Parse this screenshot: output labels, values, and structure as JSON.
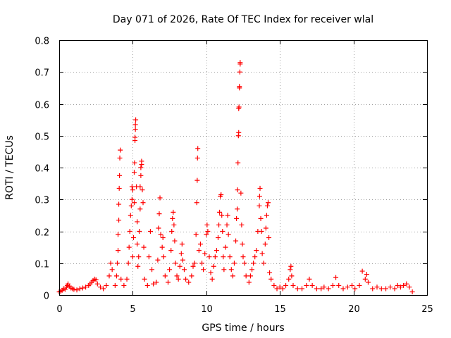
{
  "chart_data": {
    "type": "scatter",
    "title": "Day 071 of 2026, Rate Of TEC Index for receiver wlal",
    "xlabel": "GPS time / hours",
    "ylabel": "ROTI / TECUs",
    "xlim": [
      0,
      25
    ],
    "ylim": [
      0,
      0.8
    ],
    "xticks": [
      0,
      5,
      10,
      15,
      20,
      25
    ],
    "xtick_labels": [
      "0",
      "5",
      "10",
      "15",
      "20",
      "25"
    ],
    "yticks": [
      0,
      0.1,
      0.2,
      0.3,
      0.4,
      0.5,
      0.6,
      0.7,
      0.8
    ],
    "ytick_labels": [
      "0",
      "0.1",
      "0.2",
      "0.3",
      "0.4",
      "0.5",
      "0.6",
      "0.7",
      "0.8"
    ],
    "grid": true,
    "marker": "+",
    "series": [
      {
        "name": "ROTI",
        "color": "#ff0000",
        "points": [
          [
            0.0,
            0.01
          ],
          [
            0.1,
            0.012
          ],
          [
            0.2,
            0.015
          ],
          [
            0.3,
            0.02
          ],
          [
            0.4,
            0.018
          ],
          [
            0.5,
            0.025
          ],
          [
            0.55,
            0.03
          ],
          [
            0.6,
            0.035
          ],
          [
            0.7,
            0.028
          ],
          [
            0.8,
            0.022
          ],
          [
            0.9,
            0.02
          ],
          [
            1.0,
            0.018
          ],
          [
            1.2,
            0.016
          ],
          [
            1.4,
            0.02
          ],
          [
            1.6,
            0.022
          ],
          [
            1.8,
            0.025
          ],
          [
            2.0,
            0.03
          ],
          [
            2.1,
            0.035
          ],
          [
            2.2,
            0.04
          ],
          [
            2.3,
            0.045
          ],
          [
            2.4,
            0.05
          ],
          [
            2.5,
            0.048
          ],
          [
            2.6,
            0.035
          ],
          [
            2.8,
            0.025
          ],
          [
            3.0,
            0.02
          ],
          [
            3.2,
            0.03
          ],
          [
            3.4,
            0.06
          ],
          [
            3.5,
            0.1
          ],
          [
            3.6,
            0.08
          ],
          [
            3.8,
            0.03
          ],
          [
            3.9,
            0.06
          ],
          [
            3.95,
            0.1
          ],
          [
            4.0,
            0.14
          ],
          [
            4.0,
            0.19
          ],
          [
            4.05,
            0.235
          ],
          [
            4.05,
            0.285
          ],
          [
            4.08,
            0.335
          ],
          [
            4.1,
            0.375
          ],
          [
            4.12,
            0.43
          ],
          [
            4.15,
            0.455
          ],
          [
            4.2,
            0.05
          ],
          [
            4.4,
            0.03
          ],
          [
            4.6,
            0.05
          ],
          [
            4.7,
            0.1
          ],
          [
            4.75,
            0.15
          ],
          [
            4.8,
            0.2
          ],
          [
            4.85,
            0.25
          ],
          [
            4.9,
            0.28
          ],
          [
            4.95,
            0.3
          ],
          [
            4.95,
            0.34
          ],
          [
            5.0,
            0.33
          ],
          [
            5.0,
            0.12
          ],
          [
            5.05,
            0.18
          ],
          [
            5.1,
            0.29
          ],
          [
            5.1,
            0.385
          ],
          [
            5.12,
            0.415
          ],
          [
            5.15,
            0.485
          ],
          [
            5.15,
            0.495
          ],
          [
            5.18,
            0.52
          ],
          [
            5.18,
            0.535
          ],
          [
            5.2,
            0.55
          ],
          [
            5.25,
            0.34
          ],
          [
            5.3,
            0.23
          ],
          [
            5.3,
            0.16
          ],
          [
            5.35,
            0.09
          ],
          [
            5.4,
            0.12
          ],
          [
            5.45,
            0.2
          ],
          [
            5.5,
            0.27
          ],
          [
            5.5,
            0.34
          ],
          [
            5.55,
            0.375
          ],
          [
            5.55,
            0.4
          ],
          [
            5.6,
            0.42
          ],
          [
            5.6,
            0.41
          ],
          [
            5.65,
            0.33
          ],
          [
            5.7,
            0.29
          ],
          [
            5.75,
            0.15
          ],
          [
            5.8,
            0.05
          ],
          [
            6.0,
            0.03
          ],
          [
            6.1,
            0.12
          ],
          [
            6.2,
            0.2
          ],
          [
            6.3,
            0.08
          ],
          [
            6.4,
            0.035
          ],
          [
            6.6,
            0.04
          ],
          [
            6.7,
            0.11
          ],
          [
            6.75,
            0.21
          ],
          [
            6.8,
            0.255
          ],
          [
            6.85,
            0.305
          ],
          [
            6.9,
            0.19
          ],
          [
            7.0,
            0.15
          ],
          [
            7.05,
            0.18
          ],
          [
            7.1,
            0.12
          ],
          [
            7.2,
            0.06
          ],
          [
            7.4,
            0.04
          ],
          [
            7.5,
            0.08
          ],
          [
            7.6,
            0.14
          ],
          [
            7.65,
            0.2
          ],
          [
            7.7,
            0.24
          ],
          [
            7.75,
            0.26
          ],
          [
            7.8,
            0.22
          ],
          [
            7.85,
            0.17
          ],
          [
            7.9,
            0.1
          ],
          [
            8.0,
            0.06
          ],
          [
            8.1,
            0.05
          ],
          [
            8.2,
            0.09
          ],
          [
            8.3,
            0.13
          ],
          [
            8.35,
            0.16
          ],
          [
            8.4,
            0.11
          ],
          [
            8.5,
            0.08
          ],
          [
            8.6,
            0.05
          ],
          [
            8.8,
            0.04
          ],
          [
            9.0,
            0.06
          ],
          [
            9.1,
            0.09
          ],
          [
            9.2,
            0.1
          ],
          [
            9.3,
            0.19
          ],
          [
            9.35,
            0.29
          ],
          [
            9.38,
            0.36
          ],
          [
            9.4,
            0.43
          ],
          [
            9.42,
            0.46
          ],
          [
            9.5,
            0.14
          ],
          [
            9.6,
            0.16
          ],
          [
            9.7,
            0.1
          ],
          [
            9.8,
            0.08
          ],
          [
            9.9,
            0.13
          ],
          [
            10.0,
            0.19
          ],
          [
            10.05,
            0.22
          ],
          [
            10.1,
            0.2
          ],
          [
            10.2,
            0.12
          ],
          [
            10.3,
            0.07
          ],
          [
            10.4,
            0.05
          ],
          [
            10.5,
            0.09
          ],
          [
            10.6,
            0.12
          ],
          [
            10.7,
            0.14
          ],
          [
            10.8,
            0.18
          ],
          [
            10.85,
            0.22
          ],
          [
            10.9,
            0.26
          ],
          [
            10.95,
            0.31
          ],
          [
            11.0,
            0.315
          ],
          [
            11.05,
            0.25
          ],
          [
            11.1,
            0.2
          ],
          [
            11.15,
            0.12
          ],
          [
            11.2,
            0.08
          ],
          [
            11.3,
            0.15
          ],
          [
            11.4,
            0.22
          ],
          [
            11.45,
            0.25
          ],
          [
            11.5,
            0.19
          ],
          [
            11.6,
            0.12
          ],
          [
            11.7,
            0.08
          ],
          [
            11.8,
            0.06
          ],
          [
            11.9,
            0.1
          ],
          [
            12.0,
            0.17
          ],
          [
            12.05,
            0.24
          ],
          [
            12.1,
            0.27
          ],
          [
            12.12,
            0.33
          ],
          [
            12.15,
            0.415
          ],
          [
            12.18,
            0.5
          ],
          [
            12.2,
            0.51
          ],
          [
            12.2,
            0.585
          ],
          [
            12.22,
            0.59
          ],
          [
            12.25,
            0.65
          ],
          [
            12.25,
            0.655
          ],
          [
            12.28,
            0.7
          ],
          [
            12.3,
            0.725
          ],
          [
            12.3,
            0.73
          ],
          [
            12.35,
            0.32
          ],
          [
            12.4,
            0.22
          ],
          [
            12.45,
            0.16
          ],
          [
            12.5,
            0.12
          ],
          [
            12.6,
            0.1
          ],
          [
            12.7,
            0.06
          ],
          [
            12.9,
            0.04
          ],
          [
            13.0,
            0.06
          ],
          [
            13.1,
            0.08
          ],
          [
            13.2,
            0.1
          ],
          [
            13.3,
            0.12
          ],
          [
            13.4,
            0.14
          ],
          [
            13.5,
            0.2
          ],
          [
            13.6,
            0.28
          ],
          [
            13.62,
            0.31
          ],
          [
            13.65,
            0.335
          ],
          [
            13.7,
            0.24
          ],
          [
            13.75,
            0.2
          ],
          [
            13.8,
            0.13
          ],
          [
            13.9,
            0.1
          ],
          [
            14.0,
            0.16
          ],
          [
            14.05,
            0.21
          ],
          [
            14.1,
            0.25
          ],
          [
            14.15,
            0.28
          ],
          [
            14.2,
            0.29
          ],
          [
            14.25,
            0.18
          ],
          [
            14.3,
            0.07
          ],
          [
            14.4,
            0.05
          ],
          [
            14.6,
            0.03
          ],
          [
            14.8,
            0.02
          ],
          [
            15.0,
            0.025
          ],
          [
            15.2,
            0.02
          ],
          [
            15.4,
            0.03
          ],
          [
            15.6,
            0.05
          ],
          [
            15.7,
            0.08
          ],
          [
            15.75,
            0.09
          ],
          [
            15.8,
            0.06
          ],
          [
            15.9,
            0.03
          ],
          [
            16.2,
            0.02
          ],
          [
            16.5,
            0.02
          ],
          [
            16.8,
            0.03
          ],
          [
            17.0,
            0.05
          ],
          [
            17.2,
            0.03
          ],
          [
            17.5,
            0.02
          ],
          [
            17.8,
            0.02
          ],
          [
            18.0,
            0.025
          ],
          [
            18.3,
            0.02
          ],
          [
            18.6,
            0.03
          ],
          [
            18.8,
            0.055
          ],
          [
            19.0,
            0.03
          ],
          [
            19.3,
            0.02
          ],
          [
            19.6,
            0.025
          ],
          [
            19.9,
            0.03
          ],
          [
            20.1,
            0.02
          ],
          [
            20.4,
            0.03
          ],
          [
            20.6,
            0.075
          ],
          [
            20.8,
            0.05
          ],
          [
            20.9,
            0.065
          ],
          [
            21.0,
            0.04
          ],
          [
            21.3,
            0.02
          ],
          [
            21.6,
            0.025
          ],
          [
            21.9,
            0.02
          ],
          [
            22.2,
            0.02
          ],
          [
            22.5,
            0.025
          ],
          [
            22.8,
            0.02
          ],
          [
            23.0,
            0.03
          ],
          [
            23.2,
            0.025
          ],
          [
            23.4,
            0.03
          ],
          [
            23.6,
            0.035
          ],
          [
            23.8,
            0.025
          ],
          [
            24.0,
            0.01
          ]
        ]
      }
    ]
  }
}
